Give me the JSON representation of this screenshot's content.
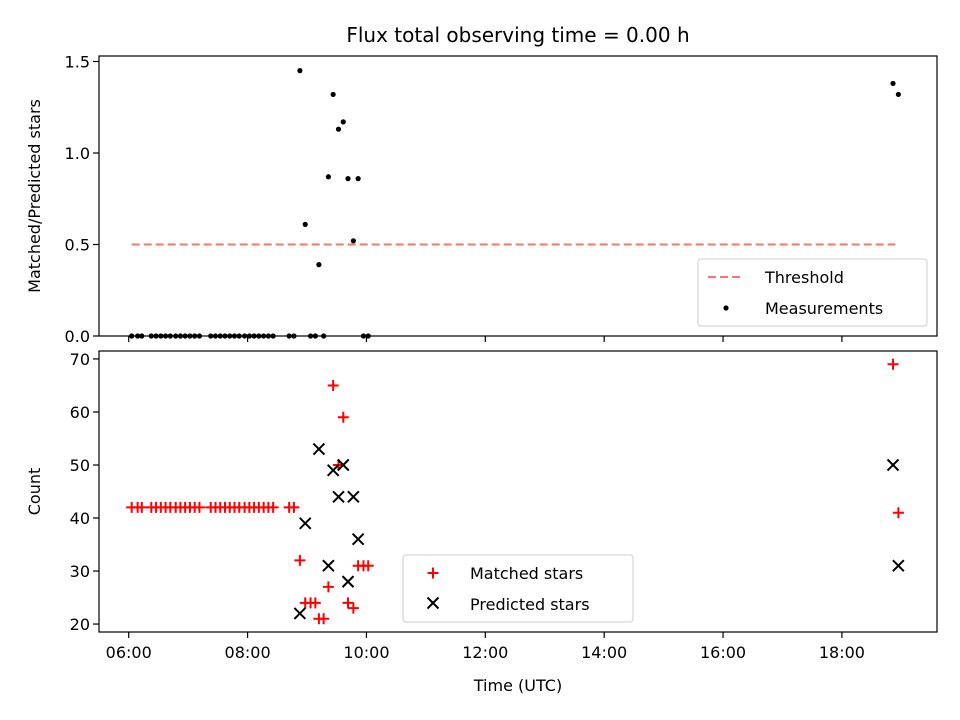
{
  "chart_data": [
    {
      "type": "scatter",
      "title": "Flux total observing time = 0.00 h",
      "xlabel": "",
      "ylabel": "Matched/Predicted stars",
      "xlim_hours": [
        5.5,
        19.6
      ],
      "ylim": [
        0,
        1.53
      ],
      "yticks": [
        0.0,
        0.5,
        1.0,
        1.5
      ],
      "ytick_labels": [
        "0.0",
        "0.5",
        "1.0",
        "1.5"
      ],
      "xticks_hours": [
        6,
        8,
        10,
        12,
        14,
        16,
        18
      ],
      "legend_position": "lower-right",
      "series": [
        {
          "name": "Threshold",
          "style": "dashed-line",
          "color": "#ff7070",
          "x": [
            6.05,
            18.9
          ],
          "y": [
            0.5,
            0.5
          ]
        },
        {
          "name": "Measurements",
          "style": "dot",
          "color": "#000000",
          "points": [
            [
              6.05,
              0
            ],
            [
              6.15,
              0
            ],
            [
              6.22,
              0
            ],
            [
              6.38,
              0
            ],
            [
              6.46,
              0
            ],
            [
              6.54,
              0
            ],
            [
              6.62,
              0
            ],
            [
              6.7,
              0
            ],
            [
              6.79,
              0
            ],
            [
              6.87,
              0
            ],
            [
              6.95,
              0
            ],
            [
              7.03,
              0
            ],
            [
              7.11,
              0
            ],
            [
              7.19,
              0
            ],
            [
              7.38,
              0
            ],
            [
              7.46,
              0
            ],
            [
              7.54,
              0
            ],
            [
              7.62,
              0
            ],
            [
              7.7,
              0
            ],
            [
              7.78,
              0
            ],
            [
              7.86,
              0
            ],
            [
              7.95,
              0
            ],
            [
              8.03,
              0
            ],
            [
              8.11,
              0
            ],
            [
              8.19,
              0
            ],
            [
              8.27,
              0
            ],
            [
              8.35,
              0
            ],
            [
              8.43,
              0
            ],
            [
              8.7,
              0
            ],
            [
              8.78,
              0
            ],
            [
              8.88,
              1.45
            ],
            [
              8.97,
              0.61
            ],
            [
              9.06,
              0
            ],
            [
              9.14,
              0
            ],
            [
              9.2,
              0.39
            ],
            [
              9.28,
              0
            ],
            [
              9.36,
              0.87
            ],
            [
              9.44,
              1.32
            ],
            [
              9.53,
              1.13
            ],
            [
              9.61,
              1.17
            ],
            [
              9.69,
              0.86
            ],
            [
              9.78,
              0.52
            ],
            [
              9.86,
              0.86
            ],
            [
              9.95,
              0
            ],
            [
              10.03,
              0
            ],
            [
              18.86,
              1.38
            ],
            [
              18.95,
              1.32
            ]
          ]
        }
      ]
    },
    {
      "type": "scatter",
      "title": "",
      "xlabel": "Time (UTC)",
      "ylabel": "Count",
      "xlim_hours": [
        5.5,
        19.6
      ],
      "ylim": [
        18.5,
        71.5
      ],
      "yticks": [
        20,
        30,
        40,
        50,
        60,
        70
      ],
      "ytick_labels": [
        "20",
        "30",
        "40",
        "50",
        "60",
        "70"
      ],
      "xticks_hours": [
        6,
        8,
        10,
        12,
        14,
        16,
        18
      ],
      "xtick_labels": [
        "06:00",
        "08:00",
        "10:00",
        "12:00",
        "14:00",
        "16:00",
        "18:00"
      ],
      "legend_position": "lower-center",
      "series": [
        {
          "name": "Matched stars",
          "marker": "plus",
          "color": "#ff0000",
          "points": [
            [
              6.05,
              42
            ],
            [
              6.15,
              42
            ],
            [
              6.22,
              42
            ],
            [
              6.38,
              42
            ],
            [
              6.46,
              42
            ],
            [
              6.54,
              42
            ],
            [
              6.62,
              42
            ],
            [
              6.7,
              42
            ],
            [
              6.79,
              42
            ],
            [
              6.87,
              42
            ],
            [
              6.95,
              42
            ],
            [
              7.03,
              42
            ],
            [
              7.11,
              42
            ],
            [
              7.19,
              42
            ],
            [
              7.38,
              42
            ],
            [
              7.46,
              42
            ],
            [
              7.54,
              42
            ],
            [
              7.62,
              42
            ],
            [
              7.7,
              42
            ],
            [
              7.78,
              42
            ],
            [
              7.86,
              42
            ],
            [
              7.95,
              42
            ],
            [
              8.03,
              42
            ],
            [
              8.11,
              42
            ],
            [
              8.19,
              42
            ],
            [
              8.27,
              42
            ],
            [
              8.35,
              42
            ],
            [
              8.43,
              42
            ],
            [
              8.7,
              42
            ],
            [
              8.78,
              42
            ],
            [
              8.88,
              32
            ],
            [
              8.97,
              24
            ],
            [
              9.06,
              24
            ],
            [
              9.14,
              24
            ],
            [
              9.2,
              21
            ],
            [
              9.28,
              21
            ],
            [
              9.36,
              27
            ],
            [
              9.44,
              65
            ],
            [
              9.53,
              50
            ],
            [
              9.61,
              59
            ],
            [
              9.69,
              24
            ],
            [
              9.78,
              23
            ],
            [
              9.86,
              31
            ],
            [
              9.95,
              31
            ],
            [
              10.03,
              31
            ],
            [
              18.86,
              69
            ],
            [
              18.95,
              41
            ]
          ]
        },
        {
          "name": "Predicted stars",
          "marker": "x",
          "color": "#000000",
          "points": [
            [
              8.88,
              22
            ],
            [
              8.97,
              39
            ],
            [
              9.2,
              53
            ],
            [
              9.36,
              31
            ],
            [
              9.44,
              49
            ],
            [
              9.53,
              44
            ],
            [
              9.61,
              50
            ],
            [
              9.69,
              28
            ],
            [
              9.78,
              44
            ],
            [
              9.86,
              36
            ],
            [
              18.86,
              50
            ],
            [
              18.95,
              31
            ]
          ]
        }
      ]
    }
  ]
}
